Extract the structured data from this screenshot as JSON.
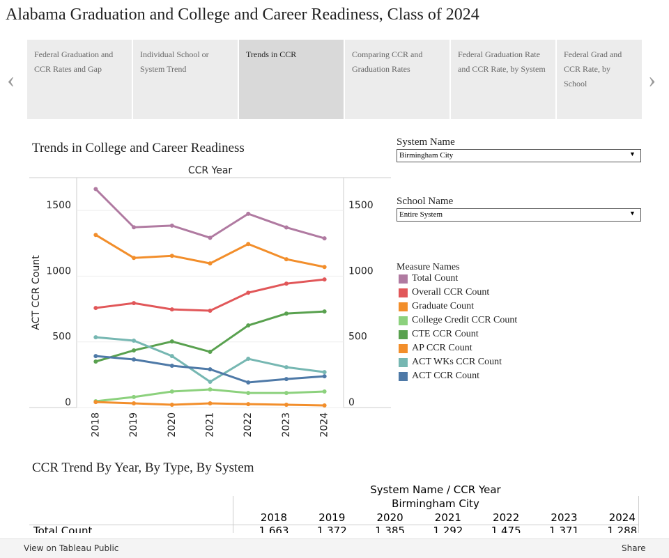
{
  "title": "Alabama Graduation and College and Career Readiness, Class of 2024",
  "tabs": [
    {
      "label": "Federal Graduation and CCR Rates and Gap",
      "selected": false
    },
    {
      "label": "Individual School or System Trend",
      "selected": false
    },
    {
      "label": "Trends in CCR",
      "selected": true
    },
    {
      "label": "Comparing CCR and Graduation Rates",
      "selected": false
    },
    {
      "label": "Federal Graduation Rate and CCR Rate, by System",
      "selected": false
    },
    {
      "label": "Federal Grad and CCR Rate, by School",
      "selected": false
    }
  ],
  "filters": [
    {
      "label": "System Name",
      "value": "Birmingham City"
    },
    {
      "label": "School Name",
      "value": "Entire System"
    }
  ],
  "chart_data": {
    "type": "line",
    "title": "Trends in College and Career Readiness",
    "x_label": "CCR Year",
    "y_label": "ACT CCR Count",
    "legend_title": "Measure Names",
    "categories": [
      "2018",
      "2019",
      "2020",
      "2021",
      "2022",
      "2023",
      "2024"
    ],
    "ylim": [
      0,
      1750
    ],
    "yticks": [
      0,
      500,
      1000,
      1500
    ],
    "grid": true,
    "series": [
      {
        "name": "Total Count",
        "color": "#b07aa1",
        "values": [
          1663,
          1372,
          1385,
          1292,
          1475,
          1371,
          1288
        ]
      },
      {
        "name": "Overall CCR Count",
        "color": "#e15759",
        "values": [
          758,
          795,
          747,
          737,
          874,
          943,
          975
        ]
      },
      {
        "name": "Graduate Count",
        "color": "#f28e2b",
        "values": [
          1314,
          1139,
          1155,
          1097,
          1245,
          1129,
          1070
        ]
      },
      {
        "name": "College Credit CCR Count",
        "color": "#8cd17d",
        "values": [
          48,
          80,
          122,
          138,
          111,
          111,
          122
        ]
      },
      {
        "name": "CTE CCR Count",
        "color": "#59a14f",
        "values": [
          350,
          435,
          503,
          424,
          625,
          715,
          731
        ]
      },
      {
        "name": "AP CCR Count",
        "color": "#f28e2b",
        "values": [
          42,
          32,
          21,
          32,
          26,
          21,
          16
        ]
      },
      {
        "name": "ACT WKs CCR Count",
        "color": "#76b7b2",
        "values": [
          535,
          509,
          392,
          196,
          371,
          307,
          270
        ]
      },
      {
        "name": "ACT CCR Count",
        "color": "#4e79a7",
        "values": [
          392,
          366,
          318,
          291,
          191,
          217,
          238
        ]
      }
    ]
  },
  "table": {
    "title": "CCR Trend By Year, By Type,  By System",
    "header": "System Name  /  CCR Year",
    "system": "Birmingham City",
    "columns": [
      "2018",
      "2019",
      "2020",
      "2021",
      "2022",
      "2023",
      "2024"
    ],
    "rows": [
      [
        "Total Count",
        "1,663",
        "1,372",
        "1,385",
        "1,292",
        "1,475",
        "1,371",
        "1,288"
      ]
    ]
  },
  "footer": {
    "link": "View on Tableau Public",
    "share": "Share"
  }
}
